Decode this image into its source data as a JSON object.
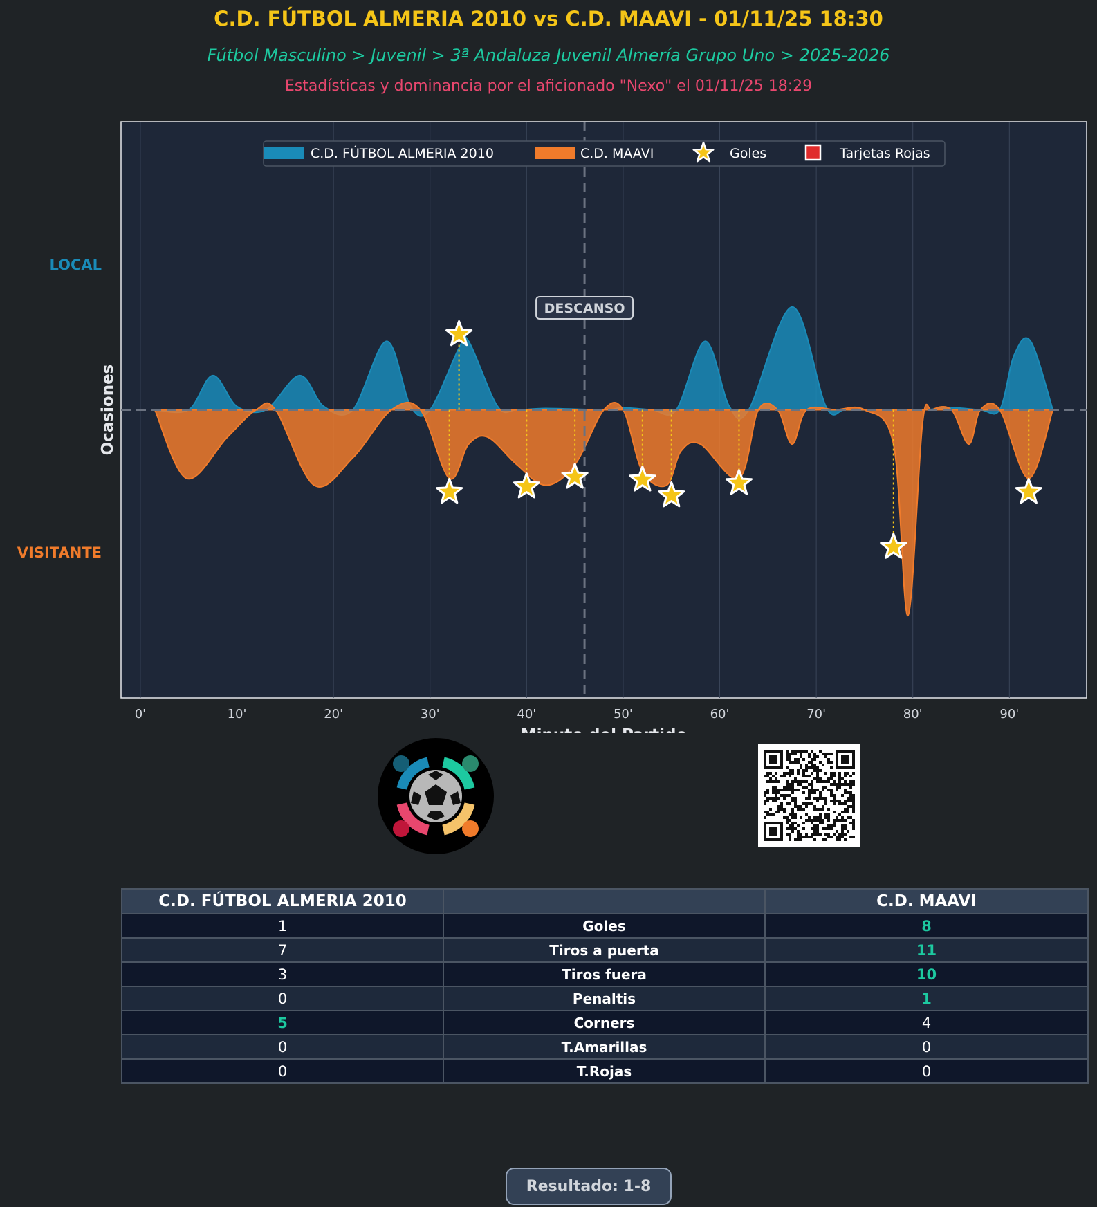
{
  "header": {
    "title": "C.D. FÚTBOL ALMERIA 2010 vs C.D. MAAVI - 01/11/25 18:30",
    "subtitle": "Fútbol Masculino > Juvenil > 3ª Andaluza Juvenil Almería Grupo Uno > 2025-2026",
    "credit": "Estadísticas y dominancia por el aficionado \"Nexo\" el 01/11/25 18:29"
  },
  "colors": {
    "home": "#1a8bb8",
    "away": "#f07b2b",
    "goal": "#f5c518",
    "red_card": "#e02b2b",
    "background": "#1f2326",
    "plot_bg": "#1e2738"
  },
  "chart_data": {
    "type": "area",
    "title": "",
    "xlabel": "Minuto del Partido",
    "ylabel": "Ocasiones",
    "xlim": [
      -2,
      98
    ],
    "ylim": [
      -4.2,
      4.2
    ],
    "x_ticks": [
      0,
      10,
      20,
      30,
      40,
      50,
      60,
      70,
      80,
      90
    ],
    "x_tick_labels": [
      "0'",
      "10'",
      "20'",
      "30'",
      "40'",
      "50'",
      "60'",
      "70'",
      "80'",
      "90'"
    ],
    "side_labels": {
      "home": "LOCAL",
      "away": "VISITANTE"
    },
    "halftime_minute": 46,
    "halftime_label": "DESCANSO",
    "legend": {
      "position": "top-center",
      "entries": [
        "C.D. FÚTBOL ALMERIA 2010",
        "C.D. MAAVI",
        "Goles",
        "Tarjetas Rojas"
      ]
    },
    "series": [
      {
        "name": "C.D. FÚTBOL ALMERIA 2010",
        "side": "home",
        "points": [
          [
            1.5,
            0
          ],
          [
            5,
            0
          ],
          [
            7.5,
            0.5
          ],
          [
            10,
            0.05
          ],
          [
            13,
            0
          ],
          [
            16.5,
            0.5
          ],
          [
            19,
            0.05
          ],
          [
            22,
            0
          ],
          [
            25.5,
            1.0
          ],
          [
            28,
            0.05
          ],
          [
            30,
            0
          ],
          [
            33,
            0.9
          ],
          [
            34,
            1.0
          ],
          [
            37,
            0.05
          ],
          [
            39,
            0
          ],
          [
            42,
            0.02
          ],
          [
            48,
            0
          ],
          [
            50,
            0.03
          ],
          [
            53,
            0
          ],
          [
            55.5,
            0
          ],
          [
            58.5,
            1.0
          ],
          [
            61,
            0.05
          ],
          [
            63,
            0
          ],
          [
            67.5,
            1.5
          ],
          [
            71,
            0.05
          ],
          [
            73,
            0
          ],
          [
            76,
            0
          ],
          [
            81,
            0
          ],
          [
            84,
            0.03
          ],
          [
            87,
            0
          ],
          [
            89,
            0
          ],
          [
            90.5,
            0.8
          ],
          [
            92.2,
            1.0
          ],
          [
            94.5,
            0
          ]
        ]
      },
      {
        "name": "C.D. MAAVI",
        "side": "away",
        "points": [
          [
            1.5,
            0
          ],
          [
            4.8,
            -1.0
          ],
          [
            9,
            -0.4
          ],
          [
            12,
            0
          ],
          [
            14,
            0
          ],
          [
            18,
            -1.1
          ],
          [
            22,
            -0.7
          ],
          [
            26,
            0
          ],
          [
            29,
            0
          ],
          [
            32,
            -1.0
          ],
          [
            34,
            -0.5
          ],
          [
            36,
            -0.4
          ],
          [
            39,
            -0.8
          ],
          [
            42,
            -1.1
          ],
          [
            45,
            -0.8
          ],
          [
            48,
            0
          ],
          [
            50,
            0
          ],
          [
            52,
            -0.9
          ],
          [
            54.5,
            -1.1
          ],
          [
            56,
            -0.6
          ],
          [
            58,
            -0.5
          ],
          [
            62,
            -1.0
          ],
          [
            64,
            0
          ],
          [
            66,
            0
          ],
          [
            67.5,
            -0.5
          ],
          [
            69,
            0
          ],
          [
            72,
            0
          ],
          [
            75,
            0
          ],
          [
            78,
            -0.5
          ],
          [
            79.5,
            -3.0
          ],
          [
            81,
            -0.2
          ],
          [
            82,
            0
          ],
          [
            84,
            0
          ],
          [
            85.8,
            -0.5
          ],
          [
            87,
            0
          ],
          [
            89,
            0
          ],
          [
            92,
            -1.0
          ],
          [
            94.5,
            0
          ]
        ]
      }
    ],
    "goals": [
      {
        "team": "C.D. FÚTBOL ALMERIA 2010",
        "minute": 33,
        "y": 1.1
      },
      {
        "team": "C.D. MAAVI",
        "minute": 32,
        "y": -1.2
      },
      {
        "team": "C.D. MAAVI",
        "minute": 40,
        "y": -1.12
      },
      {
        "team": "C.D. MAAVI",
        "minute": 45,
        "y": -0.98
      },
      {
        "team": "C.D. MAAVI",
        "minute": 52,
        "y": -1.02
      },
      {
        "team": "C.D. MAAVI",
        "minute": 55,
        "y": -1.25
      },
      {
        "team": "C.D. MAAVI",
        "minute": 62,
        "y": -1.07
      },
      {
        "team": "C.D. MAAVI",
        "minute": 78,
        "y": -2.0
      },
      {
        "team": "C.D. MAAVI",
        "minute": 92,
        "y": -1.2
      }
    ],
    "red_cards": []
  },
  "stats": {
    "home_team": "C.D. FÚTBOL ALMERIA 2010",
    "away_team": "C.D. MAAVI",
    "rows": [
      {
        "label": "Goles",
        "home": "1",
        "away": "8",
        "winner": "away"
      },
      {
        "label": "Tiros a puerta",
        "home": "7",
        "away": "11",
        "winner": "away"
      },
      {
        "label": "Tiros fuera",
        "home": "3",
        "away": "10",
        "winner": "away"
      },
      {
        "label": "Penaltis",
        "home": "0",
        "away": "1",
        "winner": "away"
      },
      {
        "label": "Corners",
        "home": "5",
        "away": "4",
        "winner": "home"
      },
      {
        "label": "T.Amarillas",
        "home": "0",
        "away": "0",
        "winner": "none"
      },
      {
        "label": "T.Rojas",
        "home": "0",
        "away": "0",
        "winner": "none"
      }
    ]
  },
  "result": "Resultado: 1-8",
  "images": {
    "logo": "app-logo",
    "qr": "qr-code"
  }
}
